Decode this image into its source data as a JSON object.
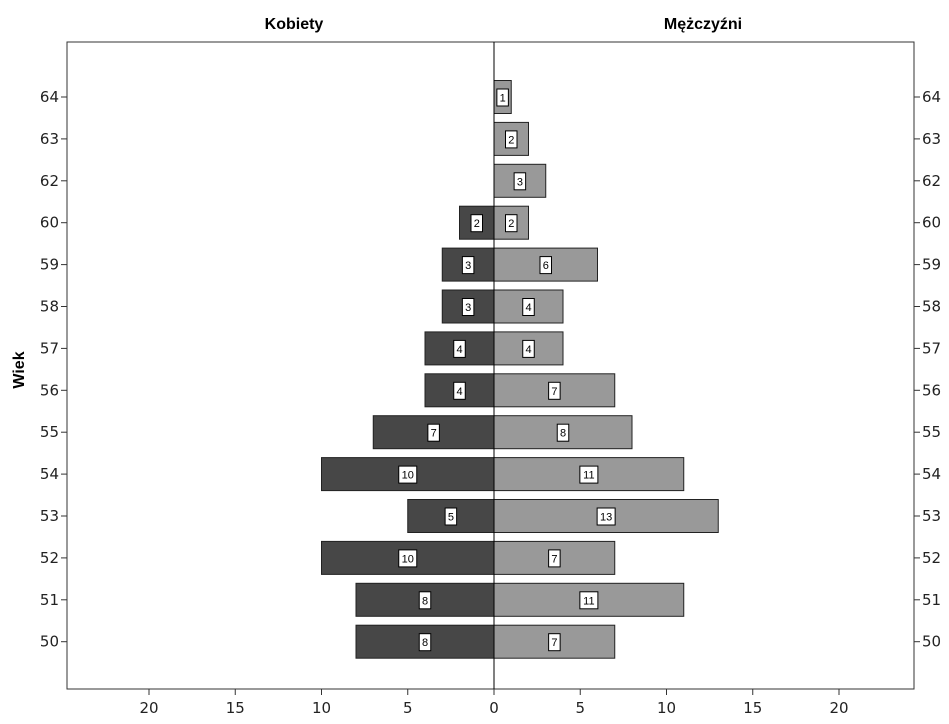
{
  "chart_data": {
    "type": "bar",
    "title_left": "Kobiety",
    "title_right": "Mężczyźni",
    "ylabel": "Wiek",
    "xlabel": "",
    "categories": [
      "64",
      "63",
      "62",
      "60",
      "59",
      "58",
      "57",
      "56",
      "55",
      "54",
      "53",
      "52",
      "51",
      "50"
    ],
    "series": [
      {
        "name": "Kobiety",
        "color": "#474747",
        "values": [
          null,
          null,
          null,
          2,
          3,
          3,
          4,
          4,
          7,
          10,
          5,
          10,
          8,
          8
        ]
      },
      {
        "name": "Mężczyźni",
        "color": "#999999",
        "values": [
          1,
          2,
          3,
          2,
          6,
          4,
          4,
          7,
          8,
          11,
          13,
          7,
          11,
          7
        ]
      }
    ],
    "xlim": [
      0,
      25
    ],
    "xticks": [
      "20",
      "15",
      "10",
      "5",
      "0",
      "5",
      "10",
      "15",
      "20"
    ],
    "grid": false,
    "legend": "none"
  }
}
